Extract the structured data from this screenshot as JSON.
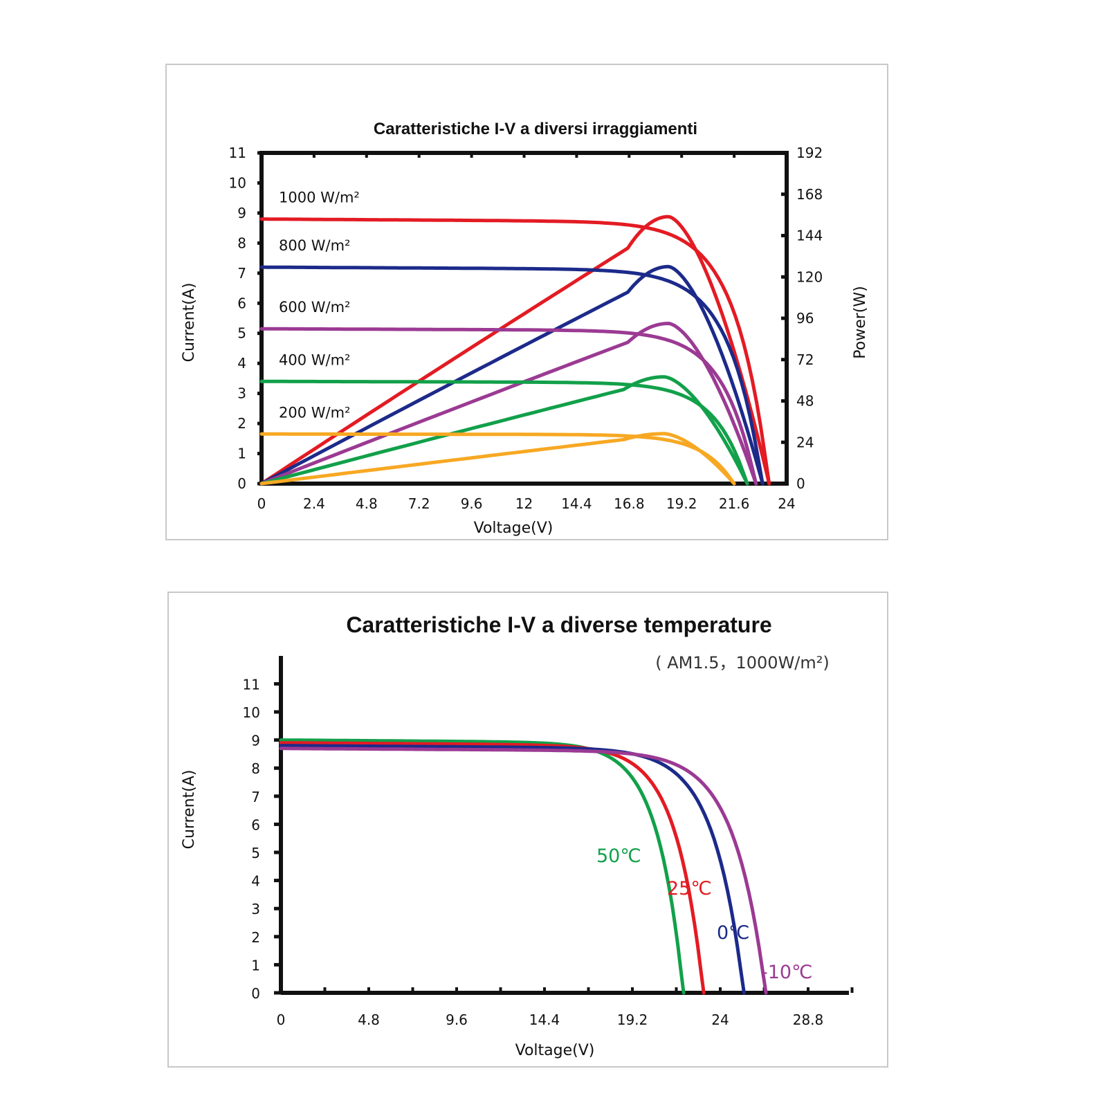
{
  "chart_data": [
    {
      "type": "line",
      "title": "Caratteristiche I-V a diversi irraggiamenti",
      "xlabel": "Voltage(V)",
      "ylabel": "Current(A)",
      "y2label": "Power(W)",
      "xlim": [
        0,
        24
      ],
      "ylim": [
        0,
        11
      ],
      "y2lim": [
        0,
        192
      ],
      "x_ticks": [
        "0",
        "2.4",
        "4.8",
        "7.2",
        "9.6",
        "12",
        "14.4",
        "16.8",
        "19.2",
        "21.6",
        "24"
      ],
      "y_ticks": [
        "0",
        "1",
        "2",
        "3",
        "4",
        "5",
        "6",
        "7",
        "8",
        "9",
        "10",
        "11"
      ],
      "y2_ticks": [
        "0",
        "24",
        "48",
        "72",
        "96",
        "120",
        "144",
        "168",
        "192"
      ],
      "series": [
        {
          "name": "1000 W/m²",
          "color": "#e31b23",
          "isc": 8.8,
          "voc": 23.2,
          "vmp": 18.6,
          "pmax": 155
        },
        {
          "name": "800 W/m²",
          "color": "#1c2a8a",
          "isc": 7.2,
          "voc": 22.9,
          "vmp": 18.6,
          "pmax": 126
        },
        {
          "name": "600 W/m²",
          "color": "#9b3a93",
          "isc": 5.15,
          "voc": 22.6,
          "vmp": 18.6,
          "pmax": 93
        },
        {
          "name": "400 W/m²",
          "color": "#12a04a",
          "isc": 3.4,
          "voc": 22.2,
          "vmp": 18.4,
          "pmax": 62
        },
        {
          "name": "200 W/m²",
          "color": "#f7a823",
          "isc": 1.65,
          "voc": 21.6,
          "vmp": 18.4,
          "pmax": 29
        }
      ]
    },
    {
      "type": "line",
      "title": "Caratteristiche I-V a diverse temperature",
      "subtitle": "( AM1.5，1000W/m²)",
      "xlabel": "Voltage(V)",
      "ylabel": "Current(A)",
      "xlim": [
        0,
        31.2
      ],
      "ylim": [
        0,
        11.5
      ],
      "x_ticks": [
        "0",
        "4.8",
        "9.6",
        "14.4",
        "19.2",
        "24",
        "28.8"
      ],
      "y_ticks": [
        "0",
        "1",
        "2",
        "3",
        "4",
        "5",
        "6",
        "7",
        "8",
        "9",
        "10",
        "11"
      ],
      "series": [
        {
          "name": "50℃",
          "color": "#12a04a",
          "isc": 9.0,
          "voc": 22.0
        },
        {
          "name": "25℃",
          "color": "#e31b23",
          "isc": 8.9,
          "voc": 23.1
        },
        {
          "name": "0℃",
          "color": "#1c2a8a",
          "isc": 8.8,
          "voc": 25.3
        },
        {
          "name": "-10℃",
          "color": "#9b3a93",
          "isc": 8.7,
          "voc": 26.5
        }
      ]
    }
  ]
}
